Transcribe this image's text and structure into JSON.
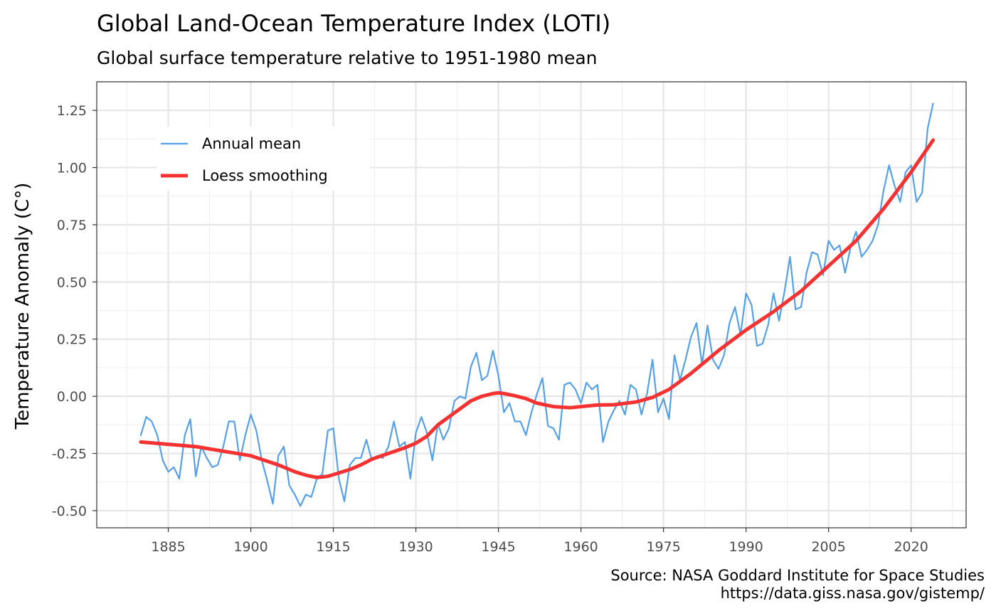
{
  "chart_data": {
    "type": "line",
    "title": "Global Land-Ocean Temperature Index (LOTI)",
    "subtitle": "Global surface temperature relative to 1951-1980 mean",
    "xlabel": "",
    "ylabel": "Temperature Anomaly (C°)",
    "caption_line1": "Source: NASA Goddard Institute for Space Studies",
    "caption_line2": "https://data.giss.nasa.gov/gistemp/",
    "xlim": [
      1872,
      2030
    ],
    "ylim": [
      -0.575,
      1.375
    ],
    "x_ticks": [
      1885,
      1900,
      1915,
      1930,
      1945,
      1960,
      1975,
      1990,
      2005,
      2020
    ],
    "x_tick_labels": [
      "1885",
      "1900",
      "1915",
      "1930",
      "1945",
      "1960",
      "1975",
      "1990",
      "2005",
      "2020"
    ],
    "x_minor_ticks": [
      1877.5,
      1892.5,
      1907.5,
      1922.5,
      1937.5,
      1952.5,
      1967.5,
      1982.5,
      1997.5,
      2012.5,
      2027.5
    ],
    "y_ticks": [
      -0.5,
      -0.25,
      0.0,
      0.25,
      0.5,
      0.75,
      1.0,
      1.25
    ],
    "y_tick_labels": [
      "-0.50",
      "-0.25",
      "0.00",
      "0.25",
      "0.50",
      "0.75",
      "1.00",
      "1.25"
    ],
    "y_minor_ticks": [
      -0.375,
      -0.125,
      0.125,
      0.375,
      0.625,
      0.875,
      1.125,
      1.375
    ],
    "grid": true,
    "legend_position": "top-left",
    "series": [
      {
        "name": "Annual mean",
        "color": "#56a0e8",
        "x": [
          1880,
          1881,
          1882,
          1883,
          1884,
          1885,
          1886,
          1887,
          1888,
          1889,
          1890,
          1891,
          1892,
          1893,
          1894,
          1895,
          1896,
          1897,
          1898,
          1899,
          1900,
          1901,
          1902,
          1903,
          1904,
          1905,
          1906,
          1907,
          1908,
          1909,
          1910,
          1911,
          1912,
          1913,
          1914,
          1915,
          1916,
          1917,
          1918,
          1919,
          1920,
          1921,
          1922,
          1923,
          1924,
          1925,
          1926,
          1927,
          1928,
          1929,
          1930,
          1931,
          1932,
          1933,
          1934,
          1935,
          1936,
          1937,
          1938,
          1939,
          1940,
          1941,
          1942,
          1943,
          1944,
          1945,
          1946,
          1947,
          1948,
          1949,
          1950,
          1951,
          1952,
          1953,
          1954,
          1955,
          1956,
          1957,
          1958,
          1959,
          1960,
          1961,
          1962,
          1963,
          1964,
          1965,
          1966,
          1967,
          1968,
          1969,
          1970,
          1971,
          1972,
          1973,
          1974,
          1975,
          1976,
          1977,
          1978,
          1979,
          1980,
          1981,
          1982,
          1983,
          1984,
          1985,
          1986,
          1987,
          1988,
          1989,
          1990,
          1991,
          1992,
          1993,
          1994,
          1995,
          1996,
          1997,
          1998,
          1999,
          2000,
          2001,
          2002,
          2003,
          2004,
          2005,
          2006,
          2007,
          2008,
          2009,
          2010,
          2011,
          2012,
          2013,
          2014,
          2015,
          2016,
          2017,
          2018,
          2019,
          2020,
          2021,
          2022,
          2023,
          2024
        ],
        "values": [
          -0.17,
          -0.09,
          -0.11,
          -0.17,
          -0.28,
          -0.33,
          -0.31,
          -0.36,
          -0.17,
          -0.1,
          -0.35,
          -0.22,
          -0.27,
          -0.31,
          -0.3,
          -0.22,
          -0.11,
          -0.11,
          -0.28,
          -0.17,
          -0.08,
          -0.15,
          -0.28,
          -0.37,
          -0.47,
          -0.26,
          -0.22,
          -0.39,
          -0.43,
          -0.48,
          -0.43,
          -0.44,
          -0.36,
          -0.34,
          -0.15,
          -0.14,
          -0.36,
          -0.46,
          -0.3,
          -0.27,
          -0.27,
          -0.19,
          -0.28,
          -0.26,
          -0.27,
          -0.22,
          -0.11,
          -0.22,
          -0.2,
          -0.36,
          -0.16,
          -0.09,
          -0.16,
          -0.28,
          -0.12,
          -0.19,
          -0.14,
          -0.02,
          0.0,
          -0.01,
          0.13,
          0.19,
          0.07,
          0.09,
          0.2,
          0.09,
          -0.07,
          -0.03,
          -0.11,
          -0.11,
          -0.17,
          -0.07,
          0.01,
          0.08,
          -0.13,
          -0.14,
          -0.19,
          0.05,
          0.06,
          0.03,
          -0.03,
          0.06,
          0.03,
          0.05,
          -0.2,
          -0.11,
          -0.06,
          -0.02,
          -0.08,
          0.05,
          0.03,
          -0.08,
          0.01,
          0.16,
          -0.07,
          -0.01,
          -0.1,
          0.18,
          0.07,
          0.16,
          0.26,
          0.32,
          0.14,
          0.31,
          0.16,
          0.12,
          0.18,
          0.32,
          0.39,
          0.27,
          0.45,
          0.4,
          0.22,
          0.23,
          0.31,
          0.45,
          0.33,
          0.46,
          0.61,
          0.38,
          0.39,
          0.54,
          0.63,
          0.62,
          0.53,
          0.68,
          0.64,
          0.66,
          0.54,
          0.65,
          0.72,
          0.61,
          0.64,
          0.68,
          0.75,
          0.9,
          1.01,
          0.92,
          0.85,
          0.98,
          1.01,
          0.85,
          0.89,
          1.17,
          1.28
        ]
      },
      {
        "name": "Loess smoothing",
        "color": "#f43232",
        "x": [
          1880,
          1885,
          1890,
          1895,
          1900,
          1905,
          1908,
          1910,
          1912,
          1914,
          1916,
          1918,
          1920,
          1922,
          1925,
          1928,
          1930,
          1932,
          1934,
          1936,
          1938,
          1940,
          1942,
          1944,
          1945,
          1946,
          1948,
          1950,
          1952,
          1955,
          1958,
          1960,
          1963,
          1966,
          1970,
          1973,
          1976,
          1980,
          1985,
          1990,
          1995,
          2000,
          2005,
          2010,
          2015,
          2020,
          2024
        ],
        "values": [
          -0.2,
          -0.21,
          -0.22,
          -0.24,
          -0.26,
          -0.3,
          -0.33,
          -0.345,
          -0.355,
          -0.35,
          -0.335,
          -0.32,
          -0.3,
          -0.275,
          -0.25,
          -0.225,
          -0.205,
          -0.175,
          -0.125,
          -0.09,
          -0.055,
          -0.02,
          0.0,
          0.012,
          0.015,
          0.012,
          0.002,
          -0.01,
          -0.03,
          -0.045,
          -0.05,
          -0.045,
          -0.038,
          -0.037,
          -0.025,
          -0.005,
          0.03,
          0.1,
          0.2,
          0.29,
          0.37,
          0.46,
          0.57,
          0.68,
          0.82,
          0.98,
          1.12
        ]
      }
    ]
  }
}
